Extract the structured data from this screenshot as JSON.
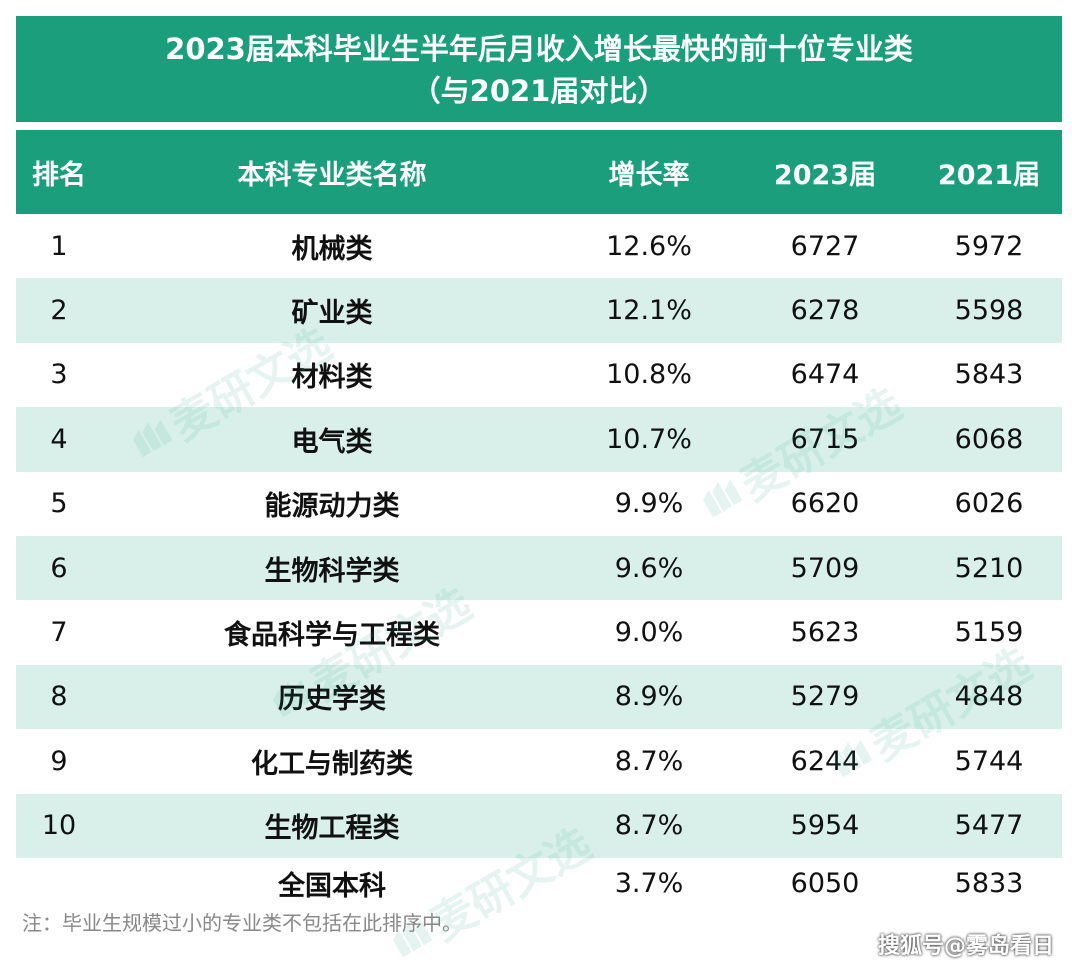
{
  "title": {
    "line1": "2023届本科毕业生半年后月收入增长最快的前十位专业类",
    "line2": "（与2021届对比）"
  },
  "headers": {
    "rank": "排名",
    "name": "本科专业类名称",
    "rate": "增长率",
    "y2023": "2023届",
    "y2021": "2021届"
  },
  "rows": [
    {
      "rank": "1",
      "name": "机械类",
      "rate": "12.6%",
      "y2023": "6727",
      "y2021": "5972"
    },
    {
      "rank": "2",
      "name": "矿业类",
      "rate": "12.1%",
      "y2023": "6278",
      "y2021": "5598"
    },
    {
      "rank": "3",
      "name": "材料类",
      "rate": "10.8%",
      "y2023": "6474",
      "y2021": "5843"
    },
    {
      "rank": "4",
      "name": "电气类",
      "rate": "10.7%",
      "y2023": "6715",
      "y2021": "6068"
    },
    {
      "rank": "5",
      "name": "能源动力类",
      "rate": "9.9%",
      "y2023": "6620",
      "y2021": "6026"
    },
    {
      "rank": "6",
      "name": "生物科学类",
      "rate": "9.6%",
      "y2023": "5709",
      "y2021": "5210"
    },
    {
      "rank": "7",
      "name": "食品科学与工程类",
      "rate": "9.0%",
      "y2023": "5623",
      "y2021": "5159"
    },
    {
      "rank": "8",
      "name": "历史学类",
      "rate": "8.9%",
      "y2023": "5279",
      "y2021": "4848"
    },
    {
      "rank": "9",
      "name": "化工与制药类",
      "rate": "8.7%",
      "y2023": "6244",
      "y2021": "5744"
    },
    {
      "rank": "10",
      "name": "生物工程类",
      "rate": "8.7%",
      "y2023": "5954",
      "y2021": "5477"
    }
  ],
  "total": {
    "name": "全国本科",
    "rate": "3.7%",
    "y2023": "6050",
    "y2021": "5833"
  },
  "note": "注：毕业生规模过小的专业类不包括在此排序中。",
  "credit": "搜狐号@雾岛看日",
  "watermark": "麦研文选",
  "colors": {
    "header_bg": "#1a9e7c",
    "stripe": "#d9f0ea"
  }
}
